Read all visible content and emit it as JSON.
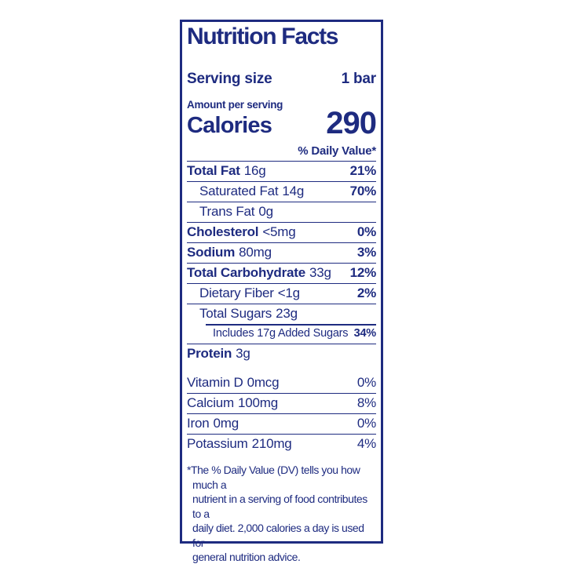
{
  "colors": {
    "navy": "#1e2b80",
    "background": "#ffffff"
  },
  "label": {
    "title": "Nutrition Facts",
    "serving": {
      "label": "Serving size",
      "value": "1 bar"
    },
    "calories": {
      "heading": "Amount per serving",
      "label": "Calories",
      "value": "290"
    },
    "daily_value_header": "% Daily Value*",
    "nutrients": [
      {
        "name": "Total Fat",
        "amount": "16g",
        "dv": "21%"
      },
      {
        "name": "Saturated Fat",
        "amount": "14g",
        "dv": "70%"
      },
      {
        "name": "Trans Fat",
        "amount": "0g"
      },
      {
        "name": "Cholesterol",
        "amount": "<5mg",
        "dv": "0%"
      },
      {
        "name": "Sodium",
        "amount": "80mg",
        "dv": "3%"
      },
      {
        "name": "Total Carbohydrate",
        "amount": "33g",
        "dv": "12%"
      },
      {
        "name": "Dietary Fiber",
        "amount": "<1g",
        "dv": "2%"
      },
      {
        "name": "Total Sugars",
        "amount": "23g"
      },
      {
        "name": "Includes 17g Added Sugars",
        "dv": "34%"
      },
      {
        "name": "Protein",
        "amount": "3g"
      }
    ],
    "vitamins": [
      {
        "name": "Vitamin D",
        "amount": "0mcg",
        "dv": "0%"
      },
      {
        "name": "Calcium",
        "amount": "100mg",
        "dv": "8%"
      },
      {
        "name": "Iron",
        "amount": "0mg",
        "dv": "0%"
      },
      {
        "name": "Potassium",
        "amount": "210mg",
        "dv": "4%"
      }
    ],
    "footnote_lines": [
      "*The % Daily Value (DV) tells you how much a",
      "nutrient in a serving of food contributes to a",
      "daily diet. 2,000 calories a day is used for",
      "general nutrition advice."
    ]
  }
}
